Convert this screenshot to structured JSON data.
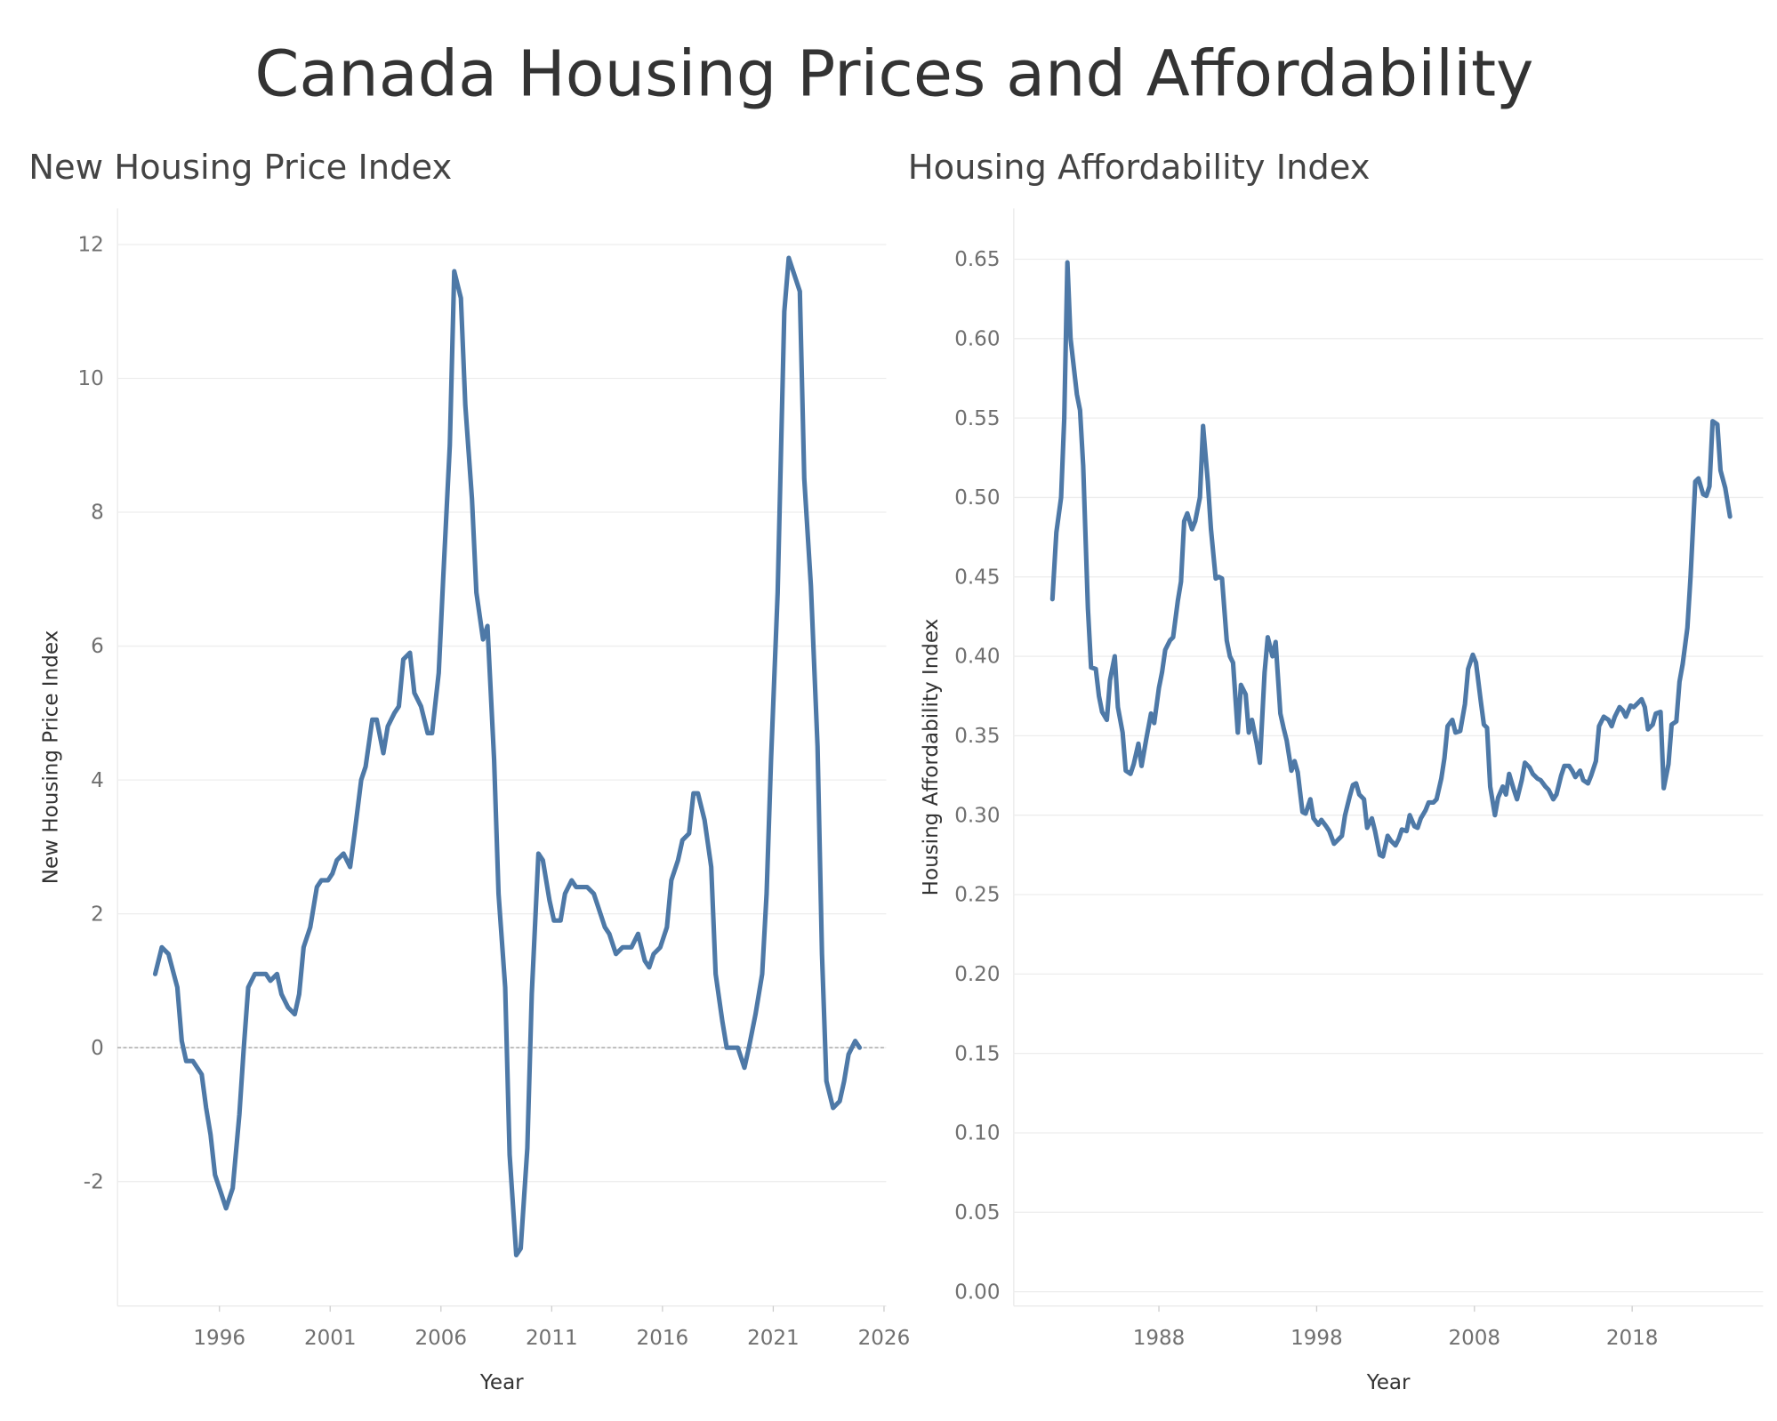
{
  "title": "Canada Housing Prices and Affordability",
  "chart_data": [
    {
      "type": "line",
      "title": "New Housing Price Index",
      "x_label": "Year",
      "y_label": "New Housing Price Index",
      "color": "#4e79a7",
      "grid": true,
      "zero_line": true,
      "xlim": [
        1991.4,
        2026.1
      ],
      "xticks": [
        1996,
        2001,
        2006,
        2011,
        2016,
        2021,
        2026
      ],
      "ylim": [
        -3.86,
        12.54
      ],
      "yticks": [
        -2,
        0,
        2,
        4,
        6,
        8,
        10,
        12
      ],
      "x": [
        1993.1,
        1993.4,
        1993.7,
        1994.1,
        1994.3,
        1994.5,
        1994.8,
        1995.2,
        1995.4,
        1995.6,
        1995.8,
        1996.1,
        1996.3,
        1996.6,
        1996.9,
        1997.1,
        1997.3,
        1997.6,
        1998.1,
        1998.3,
        1998.6,
        1998.8,
        1999.1,
        1999.4,
        1999.6,
        1999.8,
        2000.1,
        2000.4,
        2000.6,
        2000.9,
        2001.1,
        2001.3,
        2001.6,
        2001.9,
        2002.1,
        2002.4,
        2002.6,
        2002.9,
        2003.1,
        2003.4,
        2003.6,
        2003.9,
        2004.1,
        2004.3,
        2004.6,
        2004.8,
        2005.1,
        2005.4,
        2005.6,
        2005.9,
        2006.1,
        2006.4,
        2006.6,
        2006.9,
        2007.1,
        2007.4,
        2007.6,
        2007.9,
        2008.1,
        2008.4,
        2008.6,
        2008.9,
        2009.1,
        2009.4,
        2009.6,
        2009.9,
        2010.1,
        2010.4,
        2010.6,
        2010.9,
        2011.1,
        2011.4,
        2011.6,
        2011.9,
        2012.1,
        2012.4,
        2012.6,
        2012.9,
        2013.1,
        2013.4,
        2013.6,
        2013.9,
        2014.2,
        2014.6,
        2014.9,
        2015.2,
        2015.4,
        2015.6,
        2015.9,
        2016.2,
        2016.4,
        2016.7,
        2016.9,
        2017.2,
        2017.4,
        2017.6,
        2017.9,
        2018.2,
        2018.4,
        2018.7,
        2018.9,
        2019.4,
        2019.7,
        2019.9,
        2020.2,
        2020.5,
        2020.7,
        2020.9,
        2021.2,
        2021.5,
        2021.7,
        2021.9,
        2022.2,
        2022.4,
        2022.7,
        2023.0,
        2023.2,
        2023.4,
        2023.7,
        2024.0,
        2024.2,
        2024.4,
        2024.7,
        2024.9
      ],
      "values": [
        1.1,
        1.5,
        1.4,
        0.9,
        0.1,
        -0.2,
        -0.2,
        -0.4,
        -0.9,
        -1.3,
        -1.9,
        -2.2,
        -2.4,
        -2.1,
        -1.0,
        0.0,
        0.9,
        1.1,
        1.1,
        1.0,
        1.1,
        0.8,
        0.6,
        0.5,
        0.8,
        1.5,
        1.8,
        2.4,
        2.5,
        2.5,
        2.6,
        2.8,
        2.9,
        2.7,
        3.2,
        4.0,
        4.2,
        4.9,
        4.9,
        4.4,
        4.8,
        5.0,
        5.1,
        5.8,
        5.9,
        5.3,
        5.1,
        4.7,
        4.7,
        5.6,
        7.0,
        9.0,
        11.6,
        11.2,
        9.6,
        8.2,
        6.8,
        6.1,
        6.3,
        4.3,
        2.3,
        0.9,
        -1.6,
        -3.1,
        -3.0,
        -1.5,
        0.8,
        2.9,
        2.8,
        2.2,
        1.9,
        1.9,
        2.3,
        2.5,
        2.4,
        2.4,
        2.4,
        2.3,
        2.1,
        1.8,
        1.7,
        1.4,
        1.5,
        1.5,
        1.7,
        1.3,
        1.2,
        1.4,
        1.5,
        1.8,
        2.5,
        2.8,
        3.1,
        3.2,
        3.8,
        3.8,
        3.4,
        2.7,
        1.1,
        0.4,
        0.0,
        0.0,
        -0.3,
        0.0,
        0.5,
        1.1,
        2.3,
        4.3,
        6.8,
        11.0,
        11.8,
        11.6,
        11.3,
        8.5,
        6.9,
        4.5,
        1.4,
        -0.5,
        -0.9,
        -0.8,
        -0.5,
        -0.1,
        0.1,
        0.0
      ]
    },
    {
      "type": "line",
      "title": "Housing Affordability Index",
      "x_label": "Year",
      "y_label": "Housing Affordability Index",
      "color": "#4e79a7",
      "grid": true,
      "xlim": [
        1978.8,
        2026.3
      ],
      "xticks": [
        1988,
        1998,
        2008,
        2018
      ],
      "ylim": [
        -0.009,
        0.682
      ],
      "yticks": [
        {
          "value": 0,
          "label": "0.00"
        },
        0.05,
        {
          "value": 0.1,
          "label": "0.10"
        },
        0.15,
        {
          "value": 0.2,
          "label": "0.20"
        },
        0.25,
        {
          "value": 0.3,
          "label": "0.30"
        },
        0.35,
        {
          "value": 0.4,
          "label": "0.40"
        },
        0.45,
        {
          "value": 0.5,
          "label": "0.50"
        },
        0.55,
        {
          "value": 0.6,
          "label": "0.60"
        },
        0.65
      ],
      "x": [
        1981.25,
        1981.5,
        1981.8,
        1982.0,
        1982.2,
        1982.4,
        1982.8,
        1983.0,
        1983.2,
        1983.5,
        1983.7,
        1984.0,
        1984.2,
        1984.4,
        1984.7,
        1984.9,
        1985.2,
        1985.4,
        1985.7,
        1985.9,
        1986.2,
        1986.4,
        1986.7,
        1986.9,
        1987.2,
        1987.5,
        1987.7,
        1988.0,
        1988.2,
        1988.4,
        1988.7,
        1988.9,
        1989.2,
        1989.4,
        1989.6,
        1989.8,
        1990.1,
        1990.3,
        1990.6,
        1990.8,
        1991.1,
        1991.3,
        1991.6,
        1991.8,
        1992.0,
        1992.3,
        1992.5,
        1992.7,
        1993.0,
        1993.2,
        1993.5,
        1993.7,
        1993.9,
        1994.2,
        1994.4,
        1994.7,
        1994.9,
        1995.2,
        1995.4,
        1995.7,
        1995.9,
        1996.1,
        1996.4,
        1996.6,
        1996.8,
        1997.1,
        1997.3,
        1997.6,
        1997.8,
        1998.1,
        1998.3,
        1998.6,
        1998.8,
        1999.1,
        1999.3,
        1999.6,
        1999.8,
        2000.1,
        2000.3,
        2000.5,
        2000.7,
        2001.0,
        2001.2,
        2001.5,
        2001.7,
        2002.0,
        2002.2,
        2002.5,
        2002.7,
        2003.0,
        2003.2,
        2003.4,
        2003.7,
        2003.9,
        2004.2,
        2004.4,
        2004.6,
        2004.9,
        2005.1,
        2005.4,
        2005.6,
        2005.9,
        2006.1,
        2006.3,
        2006.6,
        2006.8,
        2007.1,
        2007.4,
        2007.6,
        2007.9,
        2008.1,
        2008.4,
        2008.6,
        2008.8,
        2009.0,
        2009.3,
        2009.5,
        2009.8,
        2010.0,
        2010.2,
        2010.5,
        2010.7,
        2011.0,
        2011.2,
        2011.5,
        2011.7,
        2012.0,
        2012.2,
        2012.5,
        2012.7,
        2013.0,
        2013.2,
        2013.5,
        2013.7,
        2014.0,
        2014.2,
        2014.4,
        2014.7,
        2014.9,
        2015.2,
        2015.4,
        2015.7,
        2015.9,
        2016.2,
        2016.5,
        2016.7,
        2016.9,
        2017.2,
        2017.4,
        2017.6,
        2017.9,
        2018.1,
        2018.3,
        2018.6,
        2018.8,
        2019.0,
        2019.3,
        2019.5,
        2019.8,
        2020.0,
        2020.3,
        2020.5,
        2020.8,
        2021.0,
        2021.2,
        2021.5,
        2021.7,
        2022.0,
        2022.2,
        2022.5,
        2022.7,
        2022.9,
        2023.1,
        2023.4,
        2023.6,
        2023.9,
        2024.2
      ],
      "values": [
        0.436,
        0.478,
        0.5,
        0.55,
        0.648,
        0.6,
        0.565,
        0.555,
        0.52,
        0.43,
        0.393,
        0.392,
        0.375,
        0.365,
        0.36,
        0.385,
        0.4,
        0.368,
        0.352,
        0.328,
        0.326,
        0.332,
        0.345,
        0.331,
        0.348,
        0.364,
        0.358,
        0.38,
        0.39,
        0.404,
        0.41,
        0.412,
        0.435,
        0.447,
        0.485,
        0.49,
        0.48,
        0.485,
        0.5,
        0.545,
        0.51,
        0.48,
        0.449,
        0.45,
        0.449,
        0.41,
        0.4,
        0.396,
        0.352,
        0.382,
        0.376,
        0.352,
        0.36,
        0.345,
        0.333,
        0.39,
        0.412,
        0.4,
        0.409,
        0.364,
        0.355,
        0.347,
        0.328,
        0.334,
        0.327,
        0.302,
        0.301,
        0.31,
        0.298,
        0.294,
        0.297,
        0.293,
        0.29,
        0.282,
        0.284,
        0.287,
        0.3,
        0.312,
        0.319,
        0.32,
        0.313,
        0.31,
        0.292,
        0.298,
        0.29,
        0.275,
        0.274,
        0.287,
        0.284,
        0.281,
        0.285,
        0.291,
        0.29,
        0.3,
        0.293,
        0.292,
        0.298,
        0.303,
        0.308,
        0.308,
        0.31,
        0.323,
        0.336,
        0.356,
        0.36,
        0.352,
        0.353,
        0.37,
        0.392,
        0.401,
        0.396,
        0.372,
        0.357,
        0.355,
        0.318,
        0.3,
        0.311,
        0.318,
        0.313,
        0.326,
        0.316,
        0.31,
        0.322,
        0.333,
        0.33,
        0.326,
        0.323,
        0.322,
        0.318,
        0.316,
        0.31,
        0.313,
        0.325,
        0.331,
        0.331,
        0.328,
        0.324,
        0.328,
        0.322,
        0.32,
        0.325,
        0.334,
        0.356,
        0.362,
        0.36,
        0.356,
        0.362,
        0.368,
        0.366,
        0.362,
        0.369,
        0.368,
        0.37,
        0.373,
        0.368,
        0.354,
        0.357,
        0.364,
        0.365,
        0.317,
        0.332,
        0.357,
        0.359,
        0.384,
        0.395,
        0.418,
        0.45,
        0.51,
        0.512,
        0.502,
        0.501,
        0.507,
        0.548,
        0.546,
        0.517,
        0.506,
        0.488
      ]
    }
  ]
}
